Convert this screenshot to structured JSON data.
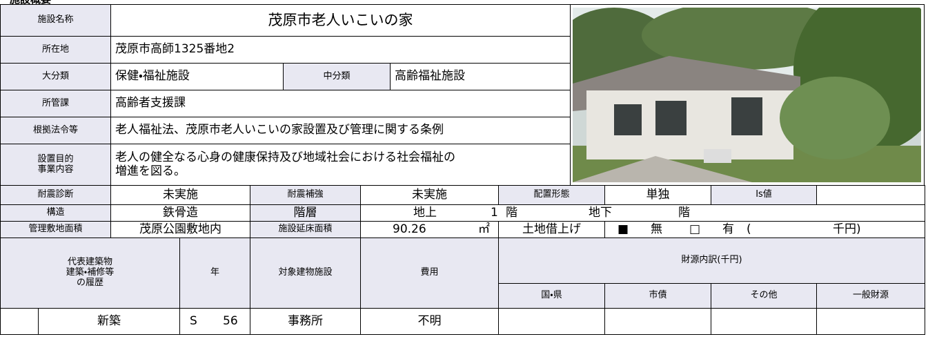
{
  "header": {
    "title": "施設概要"
  },
  "facility": {
    "name_label": "施設名称",
    "name": "茂原市老人いこいの家",
    "location_label": "所在地",
    "location": "茂原市高師1325番地2",
    "category_label": "大分類",
    "category": "保健・福祉施設",
    "subcategory_label": "中分類",
    "subcategory": "高齢福祉施設",
    "department_label": "所管課",
    "department": "高齢者支援課",
    "law_label": "根拠法令等",
    "law": "老人福祉法、茂原市老人いこいの家設置及び管理に関する条例",
    "purpose_label": "設置目的\n事業内容",
    "purpose": "老人の健全なる心身の健康保持及び地域社会における社会福祉の\n増進を図る。"
  },
  "building": {
    "seismic_label": "耐震診断",
    "seismic": "未実施",
    "reinforce_label": "耐震補強",
    "reinforce": "未実施",
    "layout_label": "配置形態",
    "layout": "単独",
    "is_label": "Is値",
    "structure_label": "構造",
    "structure": "鉄骨造",
    "floors_label": "階層",
    "above_label": "地上",
    "above": "1",
    "above_unit": "階",
    "below_label": "地下",
    "below_unit": "階",
    "site_label": "管理敷地面積",
    "site": "茂原公園敷地内",
    "floor_area_label": "施設延床面積",
    "floor_area": "90.26",
    "floor_area_unit": "㎡",
    "lease_label": "土地借上げ",
    "lease_no_mark": "■",
    "lease_no": "無",
    "lease_yes_mark": "□",
    "lease_yes": "有",
    "lease_open": "(",
    "lease_unit": "千円)"
  },
  "history": {
    "header": {
      "item": "代表建築物\n建築・補修等\nの履歴",
      "year": "年",
      "target": "対象建物施設",
      "cost": "費用",
      "funding": "財源内訳(千円)",
      "national": "国・県",
      "bond": "市債",
      "other": "その他",
      "general": "一般財源"
    },
    "rows": [
      {
        "item": "新築",
        "era": "S",
        "year": "56",
        "target": "事務所",
        "cost": "不明"
      }
    ]
  }
}
